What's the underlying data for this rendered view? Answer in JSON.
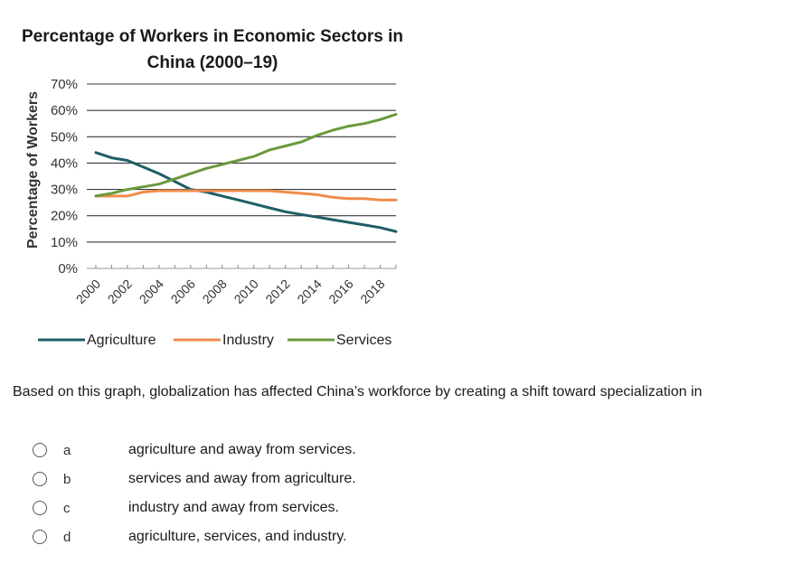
{
  "chart_data": {
    "type": "line",
    "title": "Percentage of Workers in Economic Sectors in China (2000–19)",
    "ylabel": "Percentage of Workers",
    "xlabel": "",
    "ylim": [
      0,
      70
    ],
    "yticks": [
      "0%",
      "10%",
      "20%",
      "30%",
      "40%",
      "50%",
      "60%",
      "70%"
    ],
    "x": [
      2000,
      2001,
      2002,
      2003,
      2004,
      2005,
      2006,
      2007,
      2008,
      2009,
      2010,
      2011,
      2012,
      2013,
      2014,
      2015,
      2016,
      2017,
      2018,
      2019
    ],
    "xticks": [
      "2000",
      "2002",
      "2004",
      "2006",
      "2008",
      "2010",
      "2012",
      "2014",
      "2016",
      "2018"
    ],
    "grid": true,
    "legend_position": "bottom",
    "series": [
      {
        "name": "Agriculture",
        "color": "#1e5e66",
        "values": [
          44,
          42,
          41,
          38.5,
          36,
          33,
          30,
          29,
          27.5,
          26,
          24.5,
          23,
          21.5,
          20.5,
          19.5,
          18.5,
          17.5,
          16.5,
          15.5,
          14
        ]
      },
      {
        "name": "Industry",
        "color": "#f08c4a",
        "values": [
          27.5,
          27.5,
          27.5,
          29,
          29.5,
          29.5,
          29.5,
          29.5,
          29.5,
          29.5,
          29.5,
          29.5,
          29,
          28.5,
          28,
          27,
          26.5,
          26.5,
          26,
          26
        ]
      },
      {
        "name": "Services",
        "color": "#6a9a3c",
        "values": [
          27.5,
          28.5,
          30,
          31,
          32,
          34,
          36,
          38,
          39.5,
          41,
          42.5,
          45,
          46.5,
          48,
          50.5,
          52.5,
          54,
          55,
          56.5,
          58.5
        ]
      }
    ]
  },
  "question": {
    "text": "Based on this graph, globalization has affected China’s workforce by creating a shift toward specialization in"
  },
  "options": [
    {
      "letter": "a",
      "text": "agriculture and away from services."
    },
    {
      "letter": "b",
      "text": "services and away from agriculture."
    },
    {
      "letter": "c",
      "text": "industry and away from services."
    },
    {
      "letter": "d",
      "text": "agriculture, services, and industry."
    }
  ]
}
